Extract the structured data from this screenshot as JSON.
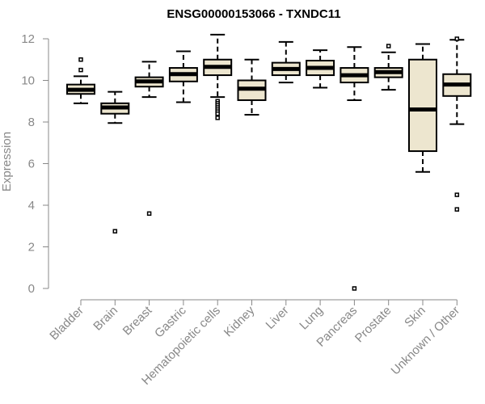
{
  "chart_data": {
    "type": "boxplot",
    "title": "ENSG00000153066 - TXNDC11",
    "ylabel": "Expression",
    "xlabel": "",
    "ylim": [
      0,
      12
    ],
    "yticks": [
      0,
      2,
      4,
      6,
      8,
      10,
      12
    ],
    "box_color": "#ede6cf",
    "outline_color": "#000000",
    "grid": false,
    "categories": [
      "Bladder",
      "Brain",
      "Breast",
      "Gastric",
      "Hematopoietic cells",
      "Kidney",
      "Liver",
      "Lung",
      "Pancreas",
      "Prostate",
      "Skin",
      "Unknown / Other"
    ],
    "boxes": [
      {
        "whisker_low": 8.9,
        "q1": 9.35,
        "median": 9.55,
        "q3": 9.8,
        "whisker_high": 10.2,
        "outliers": [
          10.5,
          11.0
        ]
      },
      {
        "whisker_low": 7.95,
        "q1": 8.4,
        "median": 8.7,
        "q3": 8.9,
        "whisker_high": 9.45,
        "outliers": [
          2.75
        ]
      },
      {
        "whisker_low": 9.2,
        "q1": 9.7,
        "median": 9.95,
        "q3": 10.15,
        "whisker_high": 10.9,
        "outliers": [
          3.6
        ]
      },
      {
        "whisker_low": 8.95,
        "q1": 9.95,
        "median": 10.3,
        "q3": 10.6,
        "whisker_high": 11.4,
        "outliers": []
      },
      {
        "whisker_low": 9.2,
        "q1": 10.25,
        "median": 10.65,
        "q3": 11.0,
        "whisker_high": 12.2,
        "outliers": [
          9.0,
          8.9,
          8.8,
          8.7,
          8.6,
          8.5,
          8.4,
          8.2
        ]
      },
      {
        "whisker_low": 8.35,
        "q1": 9.05,
        "median": 9.6,
        "q3": 10.0,
        "whisker_high": 11.0,
        "outliers": []
      },
      {
        "whisker_low": 9.9,
        "q1": 10.25,
        "median": 10.55,
        "q3": 10.85,
        "whisker_high": 11.85,
        "outliers": []
      },
      {
        "whisker_low": 9.65,
        "q1": 10.25,
        "median": 10.6,
        "q3": 10.95,
        "whisker_high": 11.45,
        "outliers": []
      },
      {
        "whisker_low": 9.05,
        "q1": 9.9,
        "median": 10.25,
        "q3": 10.6,
        "whisker_high": 11.6,
        "outliers": [
          0.0
        ]
      },
      {
        "whisker_low": 9.55,
        "q1": 10.15,
        "median": 10.4,
        "q3": 10.6,
        "whisker_high": 11.35,
        "outliers": [
          11.65
        ]
      },
      {
        "whisker_low": 5.6,
        "q1": 6.6,
        "median": 8.6,
        "q3": 11.0,
        "whisker_high": 11.75,
        "outliers": []
      },
      {
        "whisker_low": 7.9,
        "q1": 9.25,
        "median": 9.8,
        "q3": 10.3,
        "whisker_high": 11.95,
        "outliers": [
          12.0,
          4.5,
          3.8
        ]
      }
    ]
  }
}
